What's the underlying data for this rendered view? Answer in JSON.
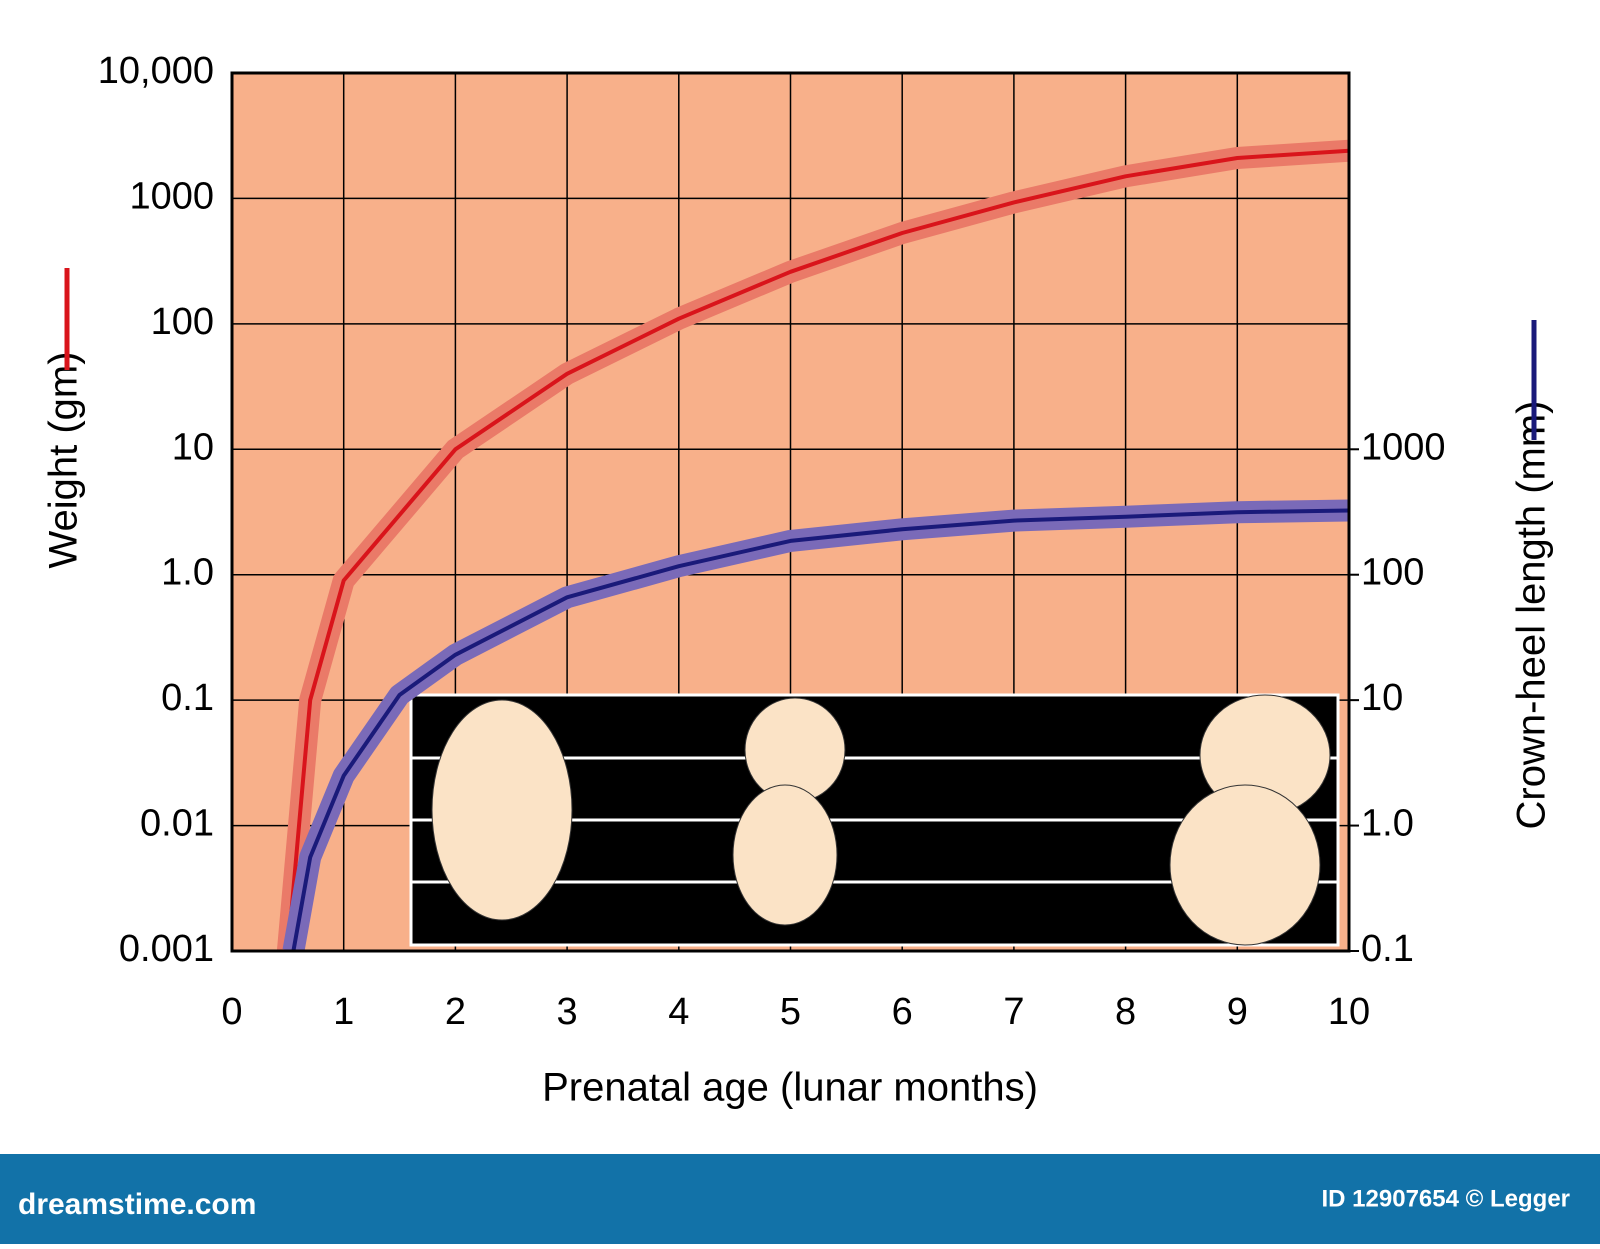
{
  "chart_data": {
    "type": "line",
    "x_label": "Prenatal age (lunar months)",
    "y_label": "Weight (gm)",
    "y2_label": "Crown-heel length (mm)",
    "xlim": [
      0,
      10
    ],
    "xticks": [
      0,
      1,
      2,
      3,
      4,
      5,
      6,
      7,
      8,
      9,
      10
    ],
    "ylim": [
      0.001,
      10000
    ],
    "y_scale": "log",
    "yticks": [
      0.001,
      0.01,
      0.1,
      {
        "value": 1,
        "label": "1.0"
      },
      10,
      100,
      1000,
      {
        "value": 10000,
        "label": "10,000"
      }
    ],
    "y2lim": [
      0.1,
      1000000
    ],
    "y2_scale": "log",
    "y2ticks": [
      0.1,
      {
        "value": 1,
        "label": "1.0"
      },
      10,
      100,
      1000
    ],
    "grid": true,
    "background": "#f8b08a",
    "series": [
      {
        "color": "#d9141b",
        "band_color": "#ea7a68",
        "axis": "y",
        "x": [
          0.5,
          0.6,
          0.7,
          1,
          2,
          3,
          4,
          5,
          6,
          7,
          8,
          9,
          10
        ],
        "values": [
          0.001,
          0.01,
          0.1,
          0.9,
          10,
          40,
          110,
          260,
          530,
          930,
          1500,
          2100,
          2400
        ]
      },
      {
        "color": "#1a1a7a",
        "band_color": "#7a6ab8",
        "axis": "y2",
        "x": [
          0.55,
          0.7,
          1,
          1.5,
          2,
          3,
          4,
          5,
          6,
          7,
          8,
          9,
          10
        ],
        "values": [
          0.1,
          0.56,
          2.5,
          11,
          23,
          66,
          117,
          186,
          230,
          270,
          290,
          315,
          325
        ]
      }
    ]
  },
  "footer": {
    "site": "dreamstime.com",
    "id": "ID 12907654 © Legger"
  }
}
